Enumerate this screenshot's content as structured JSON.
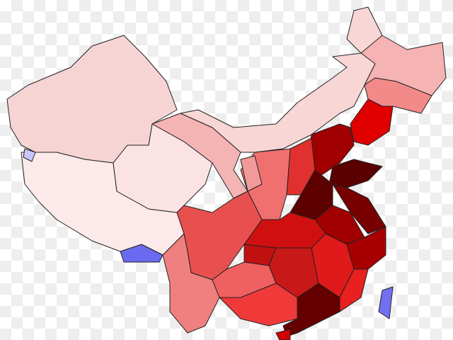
{
  "regions": [
    {
      "color": "#f7d4d4"
    },
    {
      "color": "#fce9e9"
    },
    {
      "color": "#fbe3e3"
    },
    {
      "color": "#f4b4b4"
    },
    {
      "color": "#f8d6d6"
    },
    {
      "color": "#f6b3b3"
    },
    {
      "color": "#f28a8a"
    },
    {
      "color": "#e00000"
    },
    {
      "color": "#a00000"
    },
    {
      "color": "#5a0000"
    },
    {
      "color": "#e03030"
    },
    {
      "color": "#f07070"
    },
    {
      "color": "#f29a9a"
    },
    {
      "color": "#5c0000"
    },
    {
      "color": "#780000"
    },
    {
      "color": "#a00000"
    },
    {
      "color": "#d01010"
    },
    {
      "color": "#e85050"
    },
    {
      "color": "#c01010"
    },
    {
      "color": "#f08080"
    },
    {
      "color": "#f06060"
    },
    {
      "color": "#c81818"
    },
    {
      "color": "#e01a1a"
    },
    {
      "color": "#a80000"
    },
    {
      "color": "#e82020"
    },
    {
      "color": "#f03a3a"
    },
    {
      "color": "#650000"
    },
    {
      "color": "#d00000"
    },
    {
      "color": "#6a6af0"
    },
    {
      "color": "#7070f0"
    },
    {
      "color": "#c8c8ff"
    }
  ]
}
